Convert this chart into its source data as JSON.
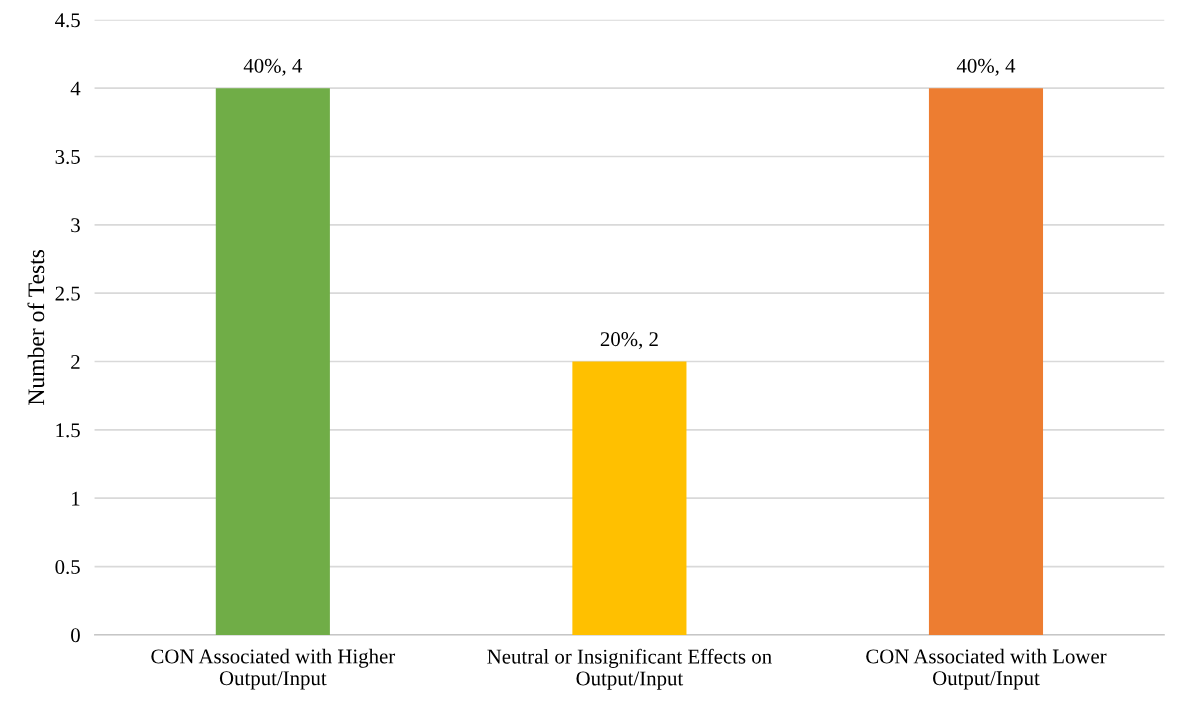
{
  "chart_data": {
    "type": "bar",
    "ylabel": "Number of Tests",
    "categories": [
      "CON Associated with Higher\nOutput/Input",
      "Neutral or Insignificant Effects on\nOutput/Input",
      "CON Associated with Lower\nOutput/Input"
    ],
    "values": [
      4,
      2,
      4
    ],
    "colors": [
      "#70ad47",
      "#ffc000",
      "#ed7d31"
    ],
    "value_labels": [
      "40%, 4",
      "20%, 2",
      "40%, 4"
    ],
    "ylim": [
      0,
      4.5
    ],
    "yticks": [
      0,
      0.5,
      1,
      1.5,
      2,
      2.5,
      3,
      3.5,
      4,
      4.5
    ],
    "grid": "y"
  }
}
